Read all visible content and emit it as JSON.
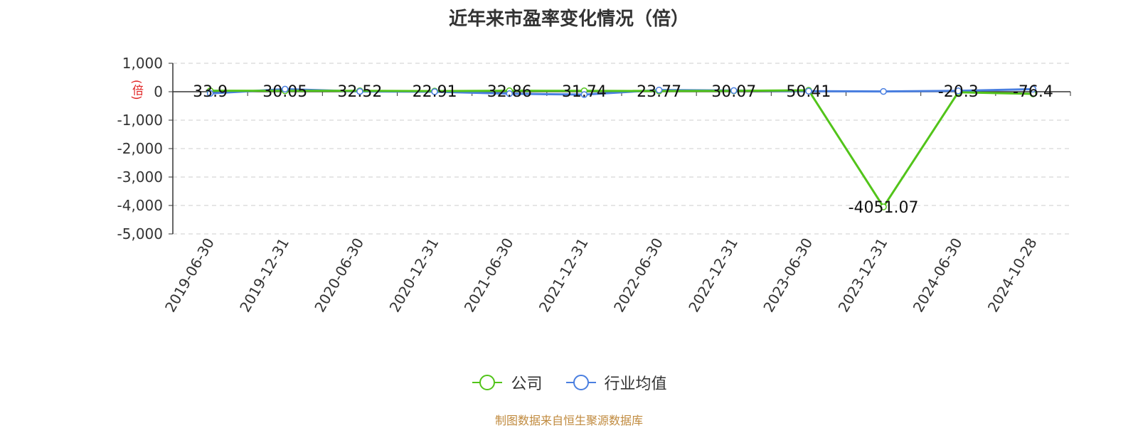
{
  "title": "近年来市盈率变化情况（倍）",
  "unit_label": "(倍)",
  "source_note": "制图数据来自恒生聚源数据库",
  "chart_data": {
    "type": "line",
    "categories": [
      "2019-06-30",
      "2019-12-31",
      "2020-06-30",
      "2020-12-31",
      "2021-06-30",
      "2021-12-31",
      "2022-06-30",
      "2022-12-31",
      "2023-06-30",
      "2023-12-31",
      "2024-06-30",
      "2024-10-28"
    ],
    "ylim": [
      -5000,
      1000
    ],
    "yticks": [
      1000,
      0,
      -1000,
      -2000,
      -3000,
      -4000,
      -5000
    ],
    "ytick_labels": [
      "1,000",
      "0",
      "-1,000",
      "-2,000",
      "-3,000",
      "-4,000",
      "-5,000"
    ],
    "grid": true,
    "legend_position": "bottom",
    "series": [
      {
        "name": "公司",
        "color": "#52c41a",
        "values": [
          33.9,
          30.05,
          32.52,
          22.91,
          32.86,
          31.74,
          23.77,
          30.07,
          50.41,
          -4051.07,
          -20.3,
          -76.4
        ],
        "labels": [
          "33.9",
          "30.05",
          "32.52",
          "22.91",
          "32.86",
          "31.74",
          "23.77",
          "30.07",
          "50.41",
          "-4051.07",
          "-20.3",
          "-76.4"
        ]
      },
      {
        "name": "行业均值",
        "color": "#4a7fe0",
        "values": [
          -60,
          90,
          10,
          0,
          -70,
          -100,
          60,
          40,
          20,
          10,
          30,
          90
        ]
      }
    ]
  }
}
